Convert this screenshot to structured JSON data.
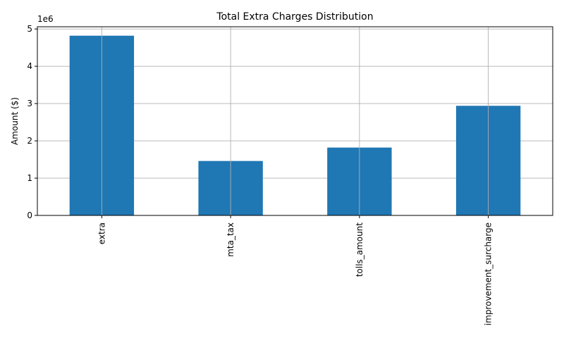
{
  "chart_data": {
    "type": "bar",
    "title": "Total Extra Charges Distribution",
    "xlabel": "",
    "ylabel": "Amount ($)",
    "categories": [
      "extra",
      "mta_tax",
      "tolls_amount",
      "improvement_surcharge"
    ],
    "values": [
      4820000,
      1460000,
      1820000,
      2940000
    ],
    "ylim": [
      0,
      5060000
    ],
    "yticks": [
      0,
      1000000,
      2000000,
      3000000,
      4000000,
      5000000
    ],
    "ytick_labels": [
      "0",
      "1",
      "2",
      "3",
      "4",
      "5"
    ],
    "offset_label": "1e6",
    "grid": true,
    "legend": "none",
    "bar_color": "#1f77b4"
  }
}
